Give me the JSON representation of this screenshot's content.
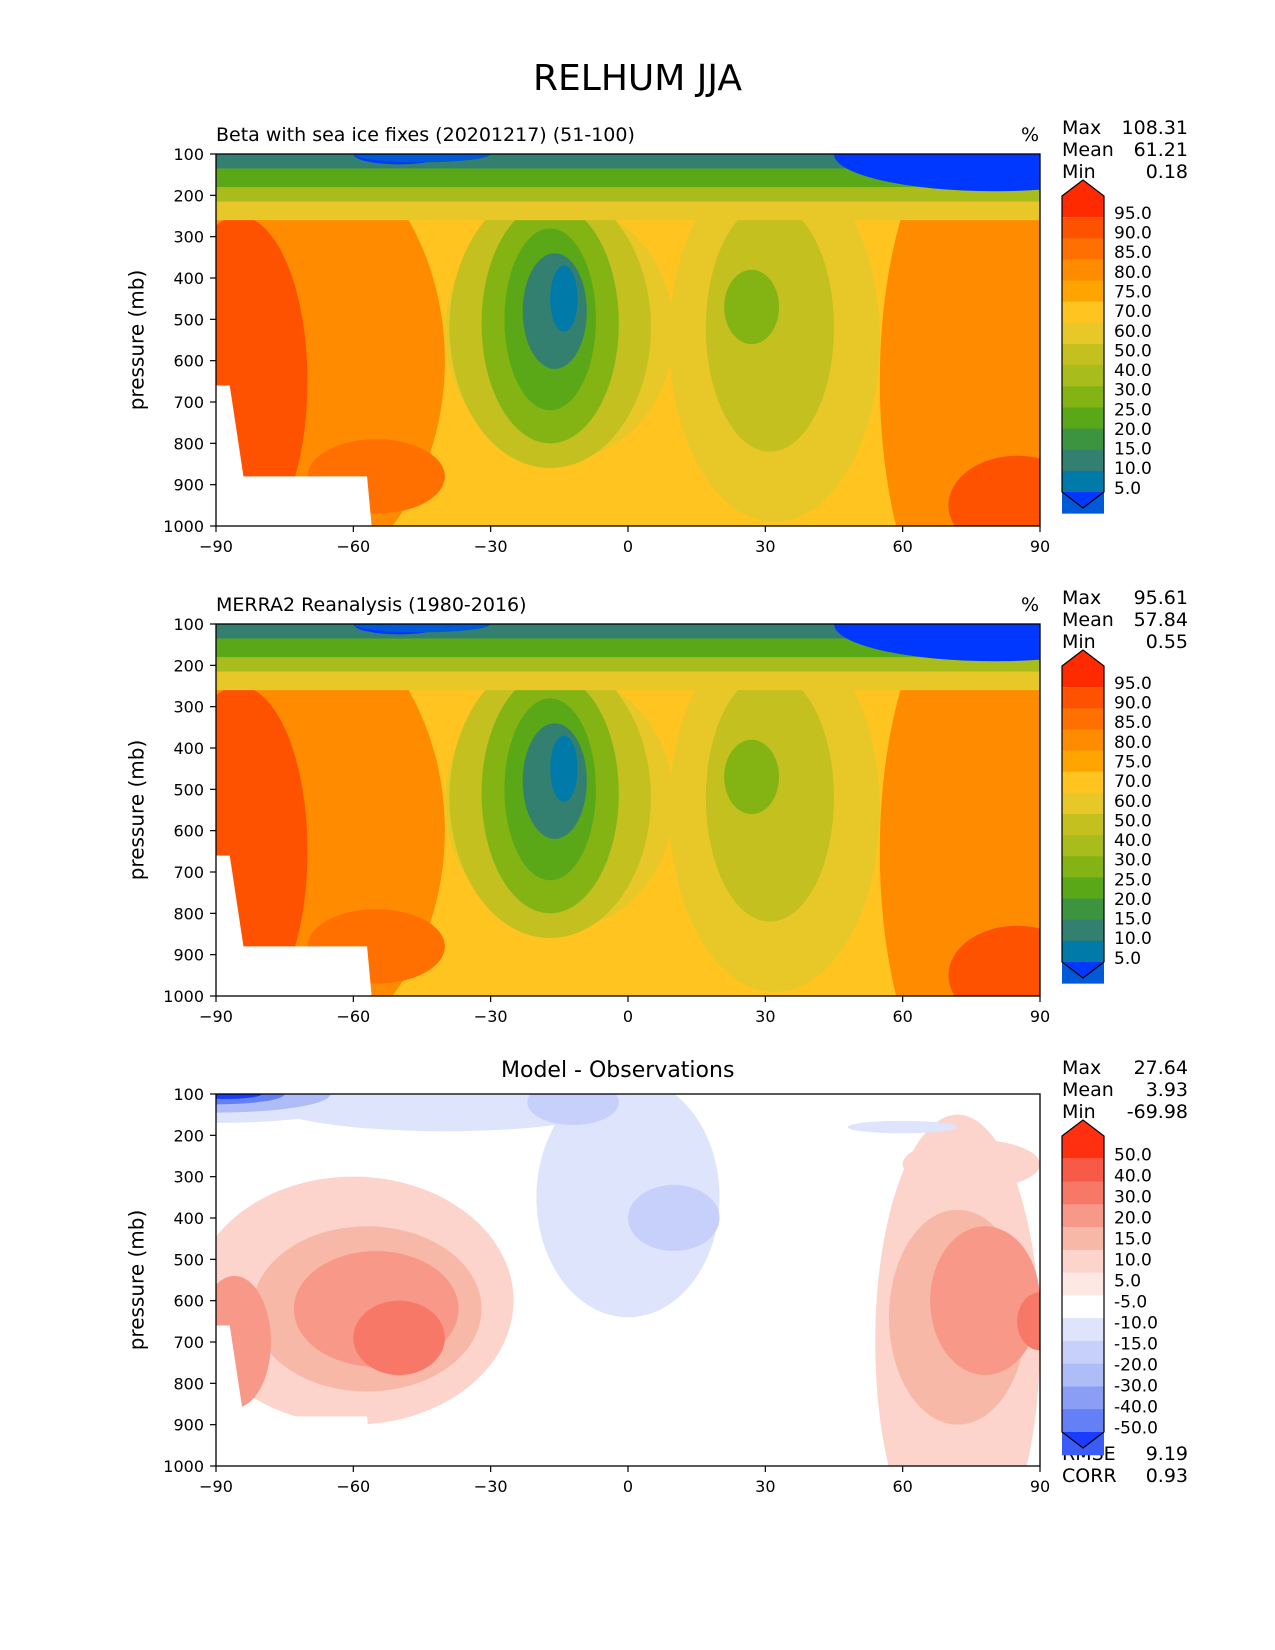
{
  "figure_title": "RELHUM JJA",
  "chart_data": [
    {
      "type": "heatmap",
      "title": "Beta with sea ice fixes (20201217) (51-100)",
      "units": "%",
      "ylabel": "pressure (mb)",
      "xlabel": "",
      "x_ticks": [
        "−90",
        "−60",
        "−30",
        "0",
        "30",
        "60",
        "90"
      ],
      "xlim": [
        -90,
        90
      ],
      "y_ticks": [
        "100",
        "200",
        "300",
        "400",
        "500",
        "600",
        "700",
        "800",
        "900",
        "1000"
      ],
      "ylim": [
        100,
        1000
      ],
      "stats": {
        "Max": "108.31",
        "Mean": "61.21",
        "Min": "0.18"
      },
      "colorbar_levels": [
        "95.0",
        "90.0",
        "85.0",
        "80.0",
        "75.0",
        "70.0",
        "60.0",
        "50.0",
        "40.0",
        "30.0",
        "25.0",
        "20.0",
        "15.0",
        "10.0",
        "5.0"
      ],
      "colorbar_colors": [
        "#ff2a00",
        "#ff5200",
        "#ff7000",
        "#ff8c00",
        "#ffa400",
        "#ffc420",
        "#e8c828",
        "#c4c020",
        "#a8bc1c",
        "#84b414",
        "#5aa818",
        "#3c9440",
        "#338070",
        "#007aa8",
        "#005ad8",
        "#0038ff"
      ],
      "color_scale": "relhum"
    },
    {
      "type": "heatmap",
      "title": "MERRA2 Reanalysis (1980-2016)",
      "units": "%",
      "ylabel": "pressure (mb)",
      "xlabel": "",
      "x_ticks": [
        "−90",
        "−60",
        "−30",
        "0",
        "30",
        "60",
        "90"
      ],
      "xlim": [
        -90,
        90
      ],
      "y_ticks": [
        "100",
        "200",
        "300",
        "400",
        "500",
        "600",
        "700",
        "800",
        "900",
        "1000"
      ],
      "ylim": [
        100,
        1000
      ],
      "stats": {
        "Max": "95.61",
        "Mean": "57.84",
        "Min": "0.55"
      },
      "colorbar_levels": [
        "95.0",
        "90.0",
        "85.0",
        "80.0",
        "75.0",
        "70.0",
        "60.0",
        "50.0",
        "40.0",
        "30.0",
        "25.0",
        "20.0",
        "15.0",
        "10.0",
        "5.0"
      ],
      "colorbar_colors": [
        "#ff2a00",
        "#ff5200",
        "#ff7000",
        "#ff8c00",
        "#ffa400",
        "#ffc420",
        "#e8c828",
        "#c4c020",
        "#a8bc1c",
        "#84b414",
        "#5aa818",
        "#3c9440",
        "#338070",
        "#007aa8",
        "#005ad8",
        "#0038ff"
      ],
      "color_scale": "relhum"
    },
    {
      "type": "heatmap",
      "title": "Model - Observations",
      "units": "",
      "ylabel": "pressure (mb)",
      "xlabel": "",
      "x_ticks": [
        "−90",
        "−60",
        "−30",
        "0",
        "30",
        "60",
        "90"
      ],
      "xlim": [
        -90,
        90
      ],
      "y_ticks": [
        "100",
        "200",
        "300",
        "400",
        "500",
        "600",
        "700",
        "800",
        "900",
        "1000"
      ],
      "ylim": [
        100,
        1000
      ],
      "stats": {
        "Max": "27.64",
        "Mean": "3.93",
        "Min": "-69.98"
      },
      "extra_stats": {
        "RMSE": "9.19",
        "CORR": "0.93"
      },
      "colorbar_levels": [
        "50.0",
        "40.0",
        "30.0",
        "20.0",
        "15.0",
        "10.0",
        "5.0",
        "-5.0",
        "-10.0",
        "-15.0",
        "-20.0",
        "-30.0",
        "-40.0",
        "-50.0"
      ],
      "colorbar_colors": [
        "#ff3010",
        "#f85a48",
        "#f87868",
        "#f89888",
        "#f8b8a8",
        "#fcd4cc",
        "#fde8e4",
        "#ffffff",
        "#dde4fc",
        "#c6d0fa",
        "#aebcf8",
        "#8a9ef6",
        "#6480f6",
        "#3c5cf8",
        "#1a3cff"
      ],
      "color_scale": "diff"
    }
  ]
}
